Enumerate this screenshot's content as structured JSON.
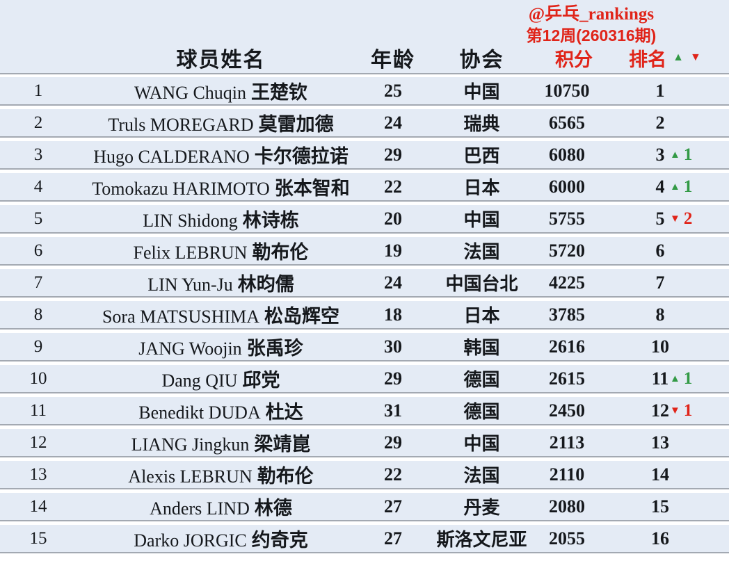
{
  "header": {
    "handle": "@乒乓_rankings",
    "week": "第12周(260316期)",
    "columns": {
      "name": "球员姓名",
      "age": "年龄",
      "association": "协会",
      "points": "积分",
      "rank": "排名"
    },
    "sort_up_icon": "▲",
    "sort_down_icon": "▼"
  },
  "colors": {
    "row_background": "#e4ebf5",
    "separator_line": "#a3a9b2",
    "accent_red": "#e02419",
    "accent_green": "#339a46",
    "text": "#15181c"
  },
  "chart_data": {
    "type": "table",
    "title": "@乒乓_rankings 第12周(260316期)",
    "columns": [
      "球员姓名",
      "年龄",
      "协会",
      "积分",
      "排名"
    ],
    "rows": [
      {
        "no": "1",
        "name_latin": "WANG Chuqin",
        "name_cn": "王楚钦",
        "age": "25",
        "association": "中国",
        "points": "10750",
        "rank": "1",
        "change": null
      },
      {
        "no": "2",
        "name_latin": "Truls MOREGARD",
        "name_cn": "莫雷加德",
        "age": "24",
        "association": "瑞典",
        "points": "6565",
        "rank": "2",
        "change": null
      },
      {
        "no": "3",
        "name_latin": "Hugo CALDERANO",
        "name_cn": "卡尔德拉诺",
        "age": "29",
        "association": "巴西",
        "points": "6080",
        "rank": "3",
        "change": {
          "dir": "up",
          "icon": "▲",
          "amount": "1"
        }
      },
      {
        "no": "4",
        "name_latin": "Tomokazu HARIMOTO",
        "name_cn": "张本智和",
        "age": "22",
        "association": "日本",
        "points": "6000",
        "rank": "4",
        "change": {
          "dir": "up",
          "icon": "▲",
          "amount": "1"
        }
      },
      {
        "no": "5",
        "name_latin": "LIN Shidong",
        "name_cn": "林诗栋",
        "age": "20",
        "association": "中国",
        "points": "5755",
        "rank": "5",
        "change": {
          "dir": "down",
          "icon": "▼",
          "amount": "2"
        }
      },
      {
        "no": "6",
        "name_latin": "Felix LEBRUN",
        "name_cn": "勒布伦",
        "age": "19",
        "association": "法国",
        "points": "5720",
        "rank": "6",
        "change": null
      },
      {
        "no": "7",
        "name_latin": "LIN Yun-Ju",
        "name_cn": "林昀儒",
        "age": "24",
        "association": "中国台北",
        "points": "4225",
        "rank": "7",
        "change": null
      },
      {
        "no": "8",
        "name_latin": "Sora MATSUSHIMA",
        "name_cn": "松岛辉空",
        "age": "18",
        "association": "日本",
        "points": "3785",
        "rank": "8",
        "change": null
      },
      {
        "no": "9",
        "name_latin": "JANG Woojin",
        "name_cn": "张禹珍",
        "age": "30",
        "association": "韩国",
        "points": "2616",
        "rank": "10",
        "change": null
      },
      {
        "no": "10",
        "name_latin": "Dang QIU",
        "name_cn": "邱党",
        "age": "29",
        "association": "德国",
        "points": "2615",
        "rank": "11",
        "change": {
          "dir": "up",
          "icon": "▲",
          "amount": "1"
        }
      },
      {
        "no": "11",
        "name_latin": "Benedikt DUDA",
        "name_cn": "杜达",
        "age": "31",
        "association": "德国",
        "points": "2450",
        "rank": "12",
        "change": {
          "dir": "down",
          "icon": "▼",
          "amount": "1"
        }
      },
      {
        "no": "12",
        "name_latin": "LIANG Jingkun",
        "name_cn": "梁靖崑",
        "age": "29",
        "association": "中国",
        "points": "2113",
        "rank": "13",
        "change": null
      },
      {
        "no": "13",
        "name_latin": "Alexis LEBRUN",
        "name_cn": "勒布伦",
        "age": "22",
        "association": "法国",
        "points": "2110",
        "rank": "14",
        "change": null
      },
      {
        "no": "14",
        "name_latin": "Anders LIND",
        "name_cn": "林德",
        "age": "27",
        "association": "丹麦",
        "points": "2080",
        "rank": "15",
        "change": null
      },
      {
        "no": "15",
        "name_latin": "Darko JORGIC",
        "name_cn": "约奇克",
        "age": "27",
        "association": "斯洛文尼亚",
        "points": "2055",
        "rank": "16",
        "change": null
      }
    ]
  }
}
